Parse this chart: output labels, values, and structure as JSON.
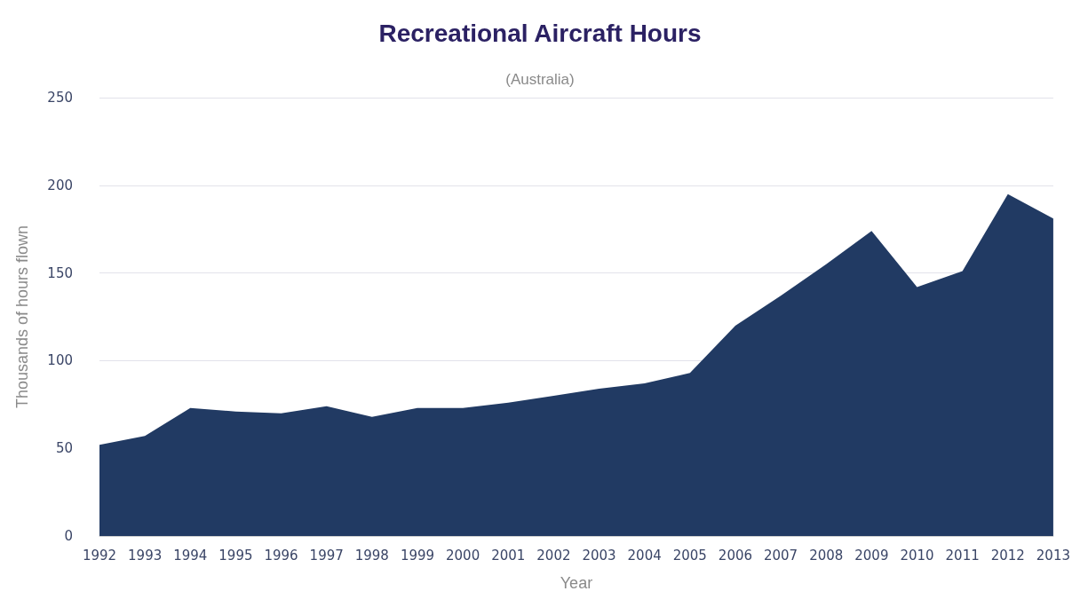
{
  "chart_data": {
    "type": "area",
    "title": "Recreational Aircraft Hours",
    "subtitle": "(Australia)",
    "xlabel": "Year",
    "ylabel": "Thousands of hours flown",
    "categories": [
      "1992",
      "1993",
      "1994",
      "1995",
      "1996",
      "1997",
      "1998",
      "1999",
      "2000",
      "2001",
      "2002",
      "2003",
      "2004",
      "2005",
      "2006",
      "2007",
      "2008",
      "2009",
      "2010",
      "2011",
      "2012",
      "2013"
    ],
    "series": [
      {
        "color": "#213a63",
        "values": [
          52,
          57,
          73,
          71,
          70,
          74,
          68,
          73,
          73,
          76,
          80,
          84,
          87,
          93,
          120,
          137,
          155,
          174,
          142,
          151,
          195,
          181
        ]
      }
    ],
    "ylim": [
      0,
      250
    ],
    "yticks": [
      0,
      50,
      100,
      150,
      200,
      250
    ],
    "grid": "y"
  }
}
